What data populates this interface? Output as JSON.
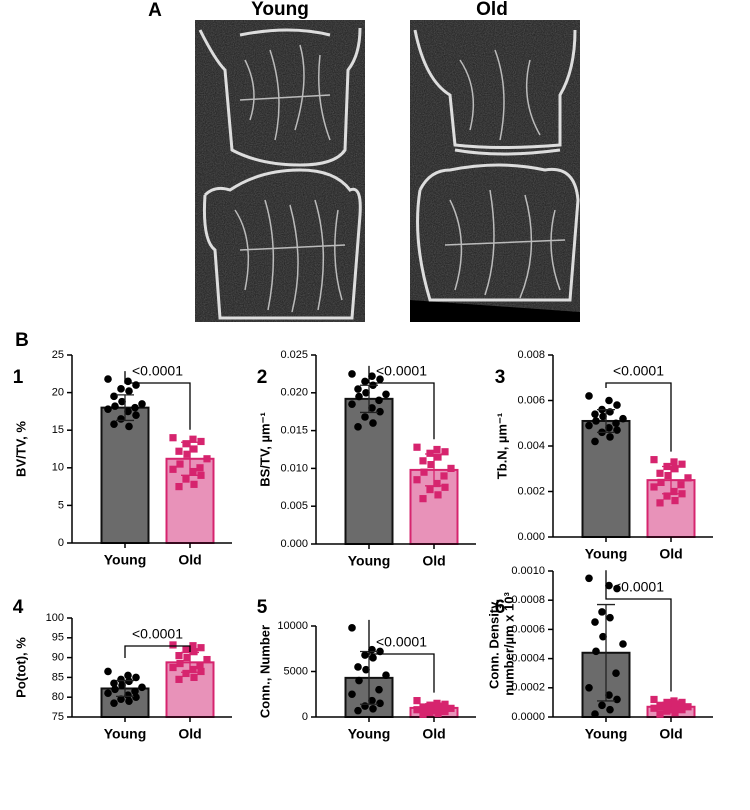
{
  "figure": {
    "label_a": "A",
    "young": "Young",
    "old": "Old",
    "label_b": "B"
  },
  "chart_data": [
    {
      "type": "bar",
      "panel": "1",
      "ylabel": [
        "BV/TV, %"
      ],
      "categories": [
        "Young",
        "Old"
      ],
      "values": [
        18.0,
        11.2
      ],
      "errors": [
        1.7,
        2.2
      ],
      "points": [
        [
          21.8,
          21.5,
          21.0,
          20.5,
          20.2,
          19.5,
          18.8,
          18.5,
          18.2,
          18.0,
          17.8,
          17.5,
          17.0,
          16.5,
          15.5,
          15.8
        ],
        [
          14.0,
          13.8,
          13.5,
          13.2,
          12.5,
          12.2,
          11.8,
          11.2,
          10.5,
          10.0,
          9.8,
          9.5,
          9.0,
          8.5,
          7.8,
          7.5
        ]
      ],
      "annotation": "<0.0001",
      "ylim": [
        0,
        25
      ],
      "yticks": [
        0,
        5,
        10,
        15,
        20,
        25
      ],
      "bar_colors": [
        "#6b6b6b",
        "#e892b9"
      ],
      "edge_colors": [
        "#111111",
        "#d6246e"
      ],
      "point_colors": [
        "#000000",
        "#d6246e"
      ]
    },
    {
      "type": "bar",
      "panel": "2",
      "ylabel": [
        "BS/TV, µm⁻¹"
      ],
      "categories": [
        "Young",
        "Old"
      ],
      "values": [
        0.0192,
        0.0098
      ],
      "errors": [
        0.0018,
        0.0021
      ],
      "points": [
        [
          0.0225,
          0.0222,
          0.0218,
          0.0215,
          0.021,
          0.0205,
          0.02,
          0.0198,
          0.0195,
          0.019,
          0.0185,
          0.018,
          0.0175,
          0.0168,
          0.016,
          0.0155
        ],
        [
          0.0128,
          0.0125,
          0.0122,
          0.012,
          0.0115,
          0.011,
          0.0105,
          0.01,
          0.0095,
          0.009,
          0.0085,
          0.008,
          0.0075,
          0.0072,
          0.0065,
          0.006
        ]
      ],
      "annotation": "<0.0001",
      "ylim": [
        0,
        0.025
      ],
      "yticks": [
        {
          "value": 0,
          "label": "0.000"
        },
        {
          "value": 0.005,
          "label": "0.005"
        },
        {
          "value": 0.01,
          "label": "0.010"
        },
        {
          "value": 0.015,
          "label": "0.015"
        },
        {
          "value": 0.02,
          "label": "0.020"
        },
        {
          "value": 0.025,
          "label": "0.025"
        }
      ],
      "bar_colors": [
        "#6b6b6b",
        "#e892b9"
      ],
      "edge_colors": [
        "#111111",
        "#d6246e"
      ],
      "point_colors": [
        "#000000",
        "#d6246e"
      ]
    },
    {
      "type": "bar",
      "panel": "3",
      "ylabel": [
        "Tb.N, µm⁻¹"
      ],
      "categories": [
        "Young",
        "Old"
      ],
      "values": [
        0.0051,
        0.0025
      ],
      "errors": [
        0.0005,
        0.0006
      ],
      "points": [
        [
          0.0062,
          0.006,
          0.0058,
          0.0056,
          0.0055,
          0.0054,
          0.0053,
          0.0052,
          0.0051,
          0.005,
          0.0049,
          0.0048,
          0.0047,
          0.0046,
          0.0044,
          0.0042
        ],
        [
          0.0034,
          0.0033,
          0.0032,
          0.0031,
          0.003,
          0.0028,
          0.0027,
          0.0026,
          0.0024,
          0.0023,
          0.0022,
          0.002,
          0.0019,
          0.0018,
          0.0016,
          0.0015
        ]
      ],
      "annotation": "<0.0001",
      "ylim": [
        0,
        0.008
      ],
      "yticks": [
        {
          "value": 0,
          "label": "0.000"
        },
        {
          "value": 0.002,
          "label": "0.002"
        },
        {
          "value": 0.004,
          "label": "0.004"
        },
        {
          "value": 0.006,
          "label": "0.006"
        },
        {
          "value": 0.008,
          "label": "0.008"
        }
      ],
      "bar_colors": [
        "#6b6b6b",
        "#e892b9"
      ],
      "edge_colors": [
        "#111111",
        "#d6246e"
      ],
      "point_colors": [
        "#000000",
        "#d6246e"
      ]
    },
    {
      "type": "bar",
      "panel": "4",
      "ylabel": [
        "Po(tot), %"
      ],
      "categories": [
        "Young",
        "Old"
      ],
      "values": [
        82.2,
        88.8
      ],
      "errors": [
        2.0,
        2.5
      ],
      "points": [
        [
          86.5,
          85.5,
          85.0,
          84.5,
          84.0,
          83.5,
          83.0,
          82.5,
          82.0,
          81.5,
          81.0,
          80.5,
          80.0,
          79.5,
          79.0,
          78.5
        ],
        [
          93.2,
          93.0,
          92.5,
          92.0,
          91.5,
          90.5,
          90.0,
          89.5,
          88.5,
          88.0,
          87.5,
          87.0,
          86.5,
          86.0,
          85.0,
          84.5
        ]
      ],
      "annotation": "<0.0001",
      "ylim": [
        75,
        100
      ],
      "yticks": [
        75,
        80,
        85,
        90,
        95,
        100
      ],
      "bar_colors": [
        "#6b6b6b",
        "#e892b9"
      ],
      "edge_colors": [
        "#111111",
        "#d6246e"
      ],
      "point_colors": [
        "#000000",
        "#d6246e"
      ]
    },
    {
      "type": "bar",
      "panel": "5",
      "ylabel": [
        "Conn., Number"
      ],
      "categories": [
        "Young",
        "Old"
      ],
      "values": [
        4300,
        1000
      ],
      "errors": [
        2900,
        450
      ],
      "points": [
        [
          9800,
          7400,
          7200,
          6800,
          6500,
          5500,
          5200,
          4600,
          4000,
          3000,
          2500,
          1800,
          1500,
          1200,
          900,
          700
        ],
        [
          1800,
          1500,
          1400,
          1300,
          1200,
          1100,
          1000,
          950,
          900,
          850,
          800,
          700,
          600,
          500,
          400,
          300
        ]
      ],
      "annotation": "<0.0001",
      "ylim": [
        0,
        10000
      ],
      "yticks": [
        0,
        5000,
        10000
      ],
      "bar_colors": [
        "#6b6b6b",
        "#e892b9"
      ],
      "edge_colors": [
        "#111111",
        "#d6246e"
      ],
      "point_colors": [
        "#000000",
        "#d6246e"
      ]
    },
    {
      "type": "bar",
      "panel": "6",
      "ylabel": [
        "Conn. Density,",
        "number/µm x 10³"
      ],
      "categories": [
        "Young",
        "Old"
      ],
      "values": [
        0.00044,
        7e-05
      ],
      "errors": [
        0.00033,
        3e-05
      ],
      "points": [
        [
          0.00095,
          0.0009,
          0.00088,
          0.00072,
          0.00068,
          0.00065,
          0.00055,
          0.0005,
          0.00045,
          0.0003,
          0.0002,
          0.00015,
          0.00012,
          8e-05,
          5e-05,
          2e-05
        ],
        [
          0.00012,
          0.00011,
          0.0001,
          0.0001,
          9e-05,
          8e-05,
          8e-05,
          7e-05,
          7e-05,
          6e-05,
          6e-05,
          5e-05,
          5e-05,
          4e-05,
          3e-05,
          2e-05
        ]
      ],
      "annotation": "<0.0001",
      "ylim": [
        0,
        0.001
      ],
      "yticks": [
        {
          "value": 0,
          "label": "0.0000"
        },
        {
          "value": 0.0002,
          "label": "0.0002"
        },
        {
          "value": 0.0004,
          "label": "0.0004"
        },
        {
          "value": 0.0006,
          "label": "0.0006"
        },
        {
          "value": 0.0008,
          "label": "0.0008"
        },
        {
          "value": 0.001,
          "label": "0.0010"
        }
      ],
      "bar_colors": [
        "#6b6b6b",
        "#e892b9"
      ],
      "edge_colors": [
        "#111111",
        "#d6246e"
      ],
      "point_colors": [
        "#000000",
        "#d6246e"
      ]
    }
  ]
}
